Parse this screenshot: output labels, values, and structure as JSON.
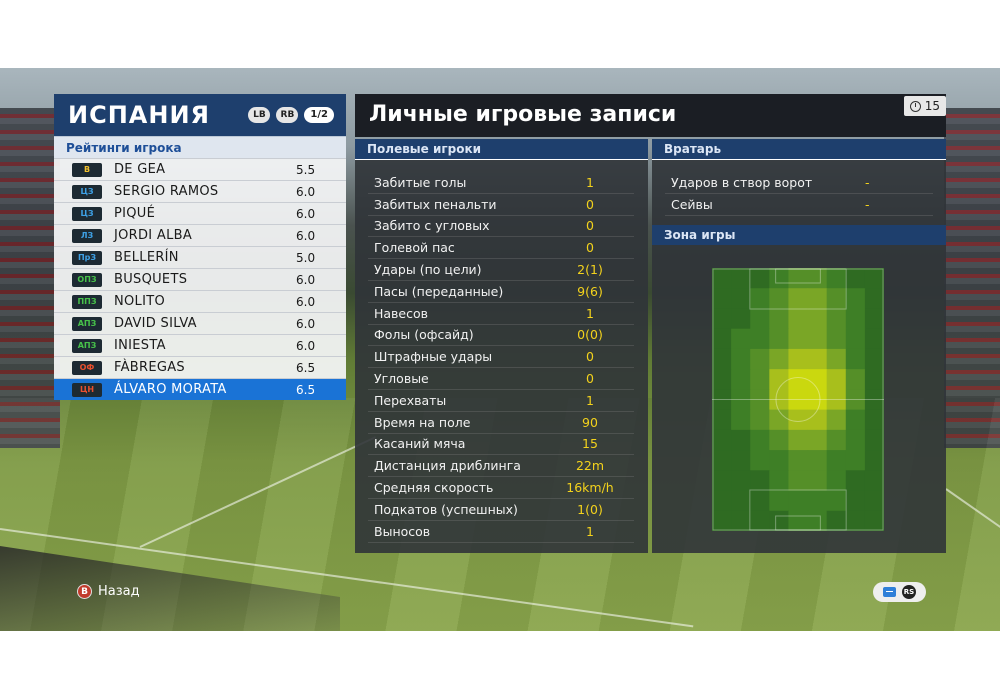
{
  "team": {
    "name": "ИСПАНИЯ",
    "lb_label": "LB",
    "rb_label": "RB",
    "page": "1/2"
  },
  "ratings_title": "Рейтинги игрока",
  "players": [
    {
      "pos": "В",
      "pos_color": "#f2c12e",
      "name": "DE GEA",
      "rating": "5.5"
    },
    {
      "pos": "ЦЗ",
      "pos_color": "#3ea1e6",
      "name": "SERGIO RAMOS",
      "rating": "6.0"
    },
    {
      "pos": "ЦЗ",
      "pos_color": "#3ea1e6",
      "name": "PIQUÉ",
      "rating": "6.0"
    },
    {
      "pos": "ЛЗ",
      "pos_color": "#3ea1e6",
      "name": "JORDI ALBA",
      "rating": "6.0"
    },
    {
      "pos": "ПрЗ",
      "pos_color": "#3ea1e6",
      "name": "BELLERÍN",
      "rating": "5.0"
    },
    {
      "pos": "ОПЗ",
      "pos_color": "#47c14a",
      "name": "BUSQUETS",
      "rating": "6.0"
    },
    {
      "pos": "ППЗ",
      "pos_color": "#47c14a",
      "name": "NOLITO",
      "rating": "6.0"
    },
    {
      "pos": "АПЗ",
      "pos_color": "#47c14a",
      "name": "DAVID SILVA",
      "rating": "6.0"
    },
    {
      "pos": "АПЗ",
      "pos_color": "#47c14a",
      "name": "INIESTA",
      "rating": "6.0"
    },
    {
      "pos": "ОФ",
      "pos_color": "#e8502e",
      "name": "FÀBREGAS",
      "rating": "6.5"
    },
    {
      "pos": "ЦН",
      "pos_color": "#e8502e",
      "name": "ÁLVARO MORATA",
      "rating": "6.5",
      "selected": true
    }
  ],
  "main": {
    "title": "Личные игровые записи",
    "timer": "15"
  },
  "field_players": {
    "header": "Полевые игроки",
    "stats": [
      {
        "label": "Забитые голы",
        "value": "1"
      },
      {
        "label": "Забитых пенальти",
        "value": "0"
      },
      {
        "label": "Забито с угловых",
        "value": "0"
      },
      {
        "label": "Голевой пас",
        "value": "0"
      },
      {
        "label": "Удары (по цели)",
        "value": "2(1)"
      },
      {
        "label": "Пасы (переданные)",
        "value": "9(6)"
      },
      {
        "label": "Навесов",
        "value": "1"
      },
      {
        "label": "Фолы (офсайд)",
        "value": "0(0)"
      },
      {
        "label": "Штрафные удары",
        "value": "0"
      },
      {
        "label": "Угловые",
        "value": "0"
      },
      {
        "label": "Перехваты",
        "value": "1"
      },
      {
        "label": "Время на поле",
        "value": "90"
      },
      {
        "label": "Касаний мяча",
        "value": "15"
      },
      {
        "label": "Дистанция дриблинга",
        "value": "22m"
      },
      {
        "label": "Средняя скорость",
        "value": "16km/h"
      },
      {
        "label": "Подкатов (успешных)",
        "value": "1(0)"
      },
      {
        "label": "Выносов",
        "value": "1"
      }
    ]
  },
  "goalkeeper": {
    "header": "Вратарь",
    "stats": [
      {
        "label": "Ударов в створ ворот",
        "value": "-"
      },
      {
        "label": "Сейвы",
        "value": "-"
      }
    ]
  },
  "zone": {
    "header": "Зона игры",
    "heatmap": [
      [
        0,
        0,
        0,
        1,
        2,
        2,
        1,
        0,
        0
      ],
      [
        0,
        0,
        1,
        2,
        3,
        3,
        2,
        1,
        0
      ],
      [
        0,
        0,
        1,
        2,
        3,
        3,
        2,
        1,
        0
      ],
      [
        0,
        1,
        1,
        2,
        3,
        3,
        2,
        1,
        0
      ],
      [
        0,
        1,
        2,
        3,
        4,
        4,
        3,
        1,
        0
      ],
      [
        0,
        1,
        2,
        4,
        5,
        5,
        4,
        2,
        0
      ],
      [
        0,
        1,
        2,
        4,
        5,
        5,
        4,
        2,
        0
      ],
      [
        0,
        1,
        2,
        3,
        4,
        4,
        3,
        1,
        0
      ],
      [
        0,
        0,
        1,
        2,
        3,
        3,
        2,
        1,
        0
      ],
      [
        0,
        0,
        1,
        1,
        2,
        2,
        1,
        1,
        0
      ],
      [
        0,
        0,
        0,
        1,
        2,
        2,
        1,
        0,
        0
      ],
      [
        0,
        0,
        0,
        1,
        1,
        1,
        1,
        0,
        0
      ],
      [
        0,
        0,
        0,
        0,
        1,
        1,
        0,
        0,
        0
      ]
    ]
  },
  "hints": {
    "back_button": "B",
    "back_label": "Назад",
    "rs_label": "RS"
  }
}
